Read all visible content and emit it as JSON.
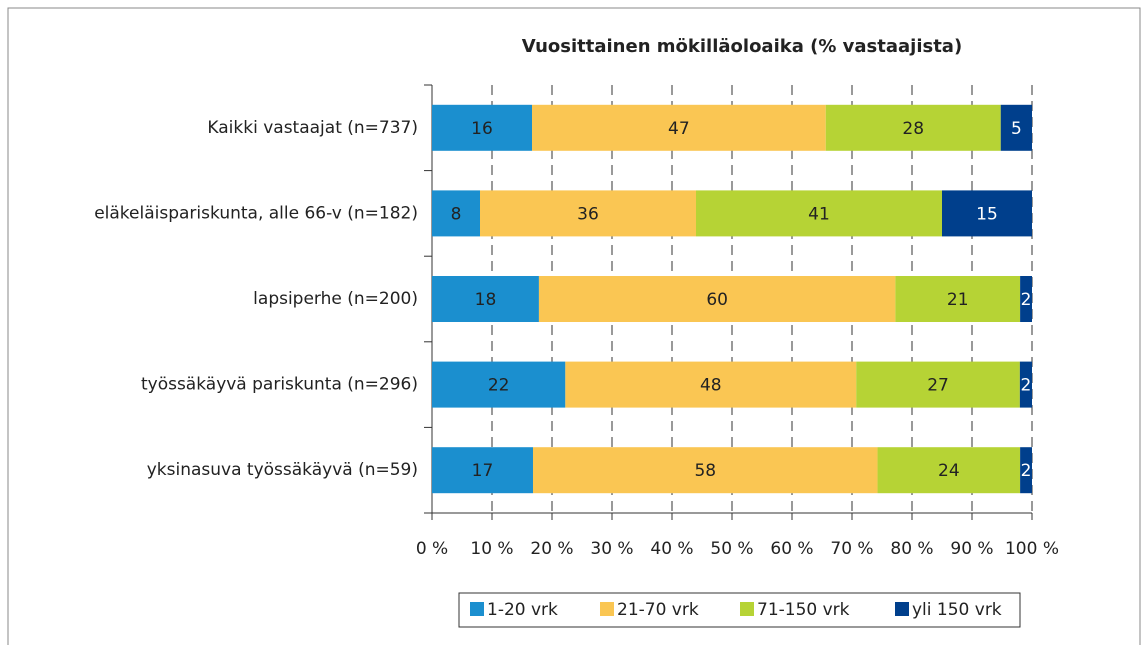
{
  "chart_data": {
    "type": "bar",
    "orientation": "horizontal",
    "stacking": "percent",
    "title": "Vuosittainen mökilläoloaika (% vastaajista)",
    "categories": [
      "Kaikki vastaajat (n=737)",
      "eläkeläispariskunta, alle 66-v (n=182)",
      "lapsiperhe (n=200)",
      "työssäkäyvä pariskunta (n=296)",
      "yksinasuva työssäkäyvä (n=59)"
    ],
    "series": [
      {
        "name": "1-20 vrk",
        "color": "#1b8fcf",
        "values": [
          16,
          8,
          18,
          22,
          17
        ]
      },
      {
        "name": "21-70 vrk",
        "color": "#fac653",
        "values": [
          47,
          36,
          60,
          48,
          58
        ]
      },
      {
        "name": "71-150 vrk",
        "color": "#b6d335",
        "values": [
          28,
          41,
          21,
          27,
          24
        ]
      },
      {
        "name": "yli 150 vrk",
        "color": "#003f8c",
        "values": [
          5,
          15,
          2,
          2,
          2
        ]
      }
    ],
    "xlim": [
      0,
      100
    ],
    "xticks": [
      {
        "value": 0,
        "label": "0 %"
      },
      {
        "value": 10,
        "label": "10 %"
      },
      {
        "value": 20,
        "label": "20 %"
      },
      {
        "value": 30,
        "label": "30 %"
      },
      {
        "value": 40,
        "label": "40 %"
      },
      {
        "value": 50,
        "label": "50 %"
      },
      {
        "value": 60,
        "label": "60 %"
      },
      {
        "value": 70,
        "label": "70 %"
      },
      {
        "value": 80,
        "label": "80 %"
      },
      {
        "value": 90,
        "label": "90 %"
      },
      {
        "value": 100,
        "label": "100 %"
      }
    ],
    "grid": true,
    "legend": "bottom"
  }
}
